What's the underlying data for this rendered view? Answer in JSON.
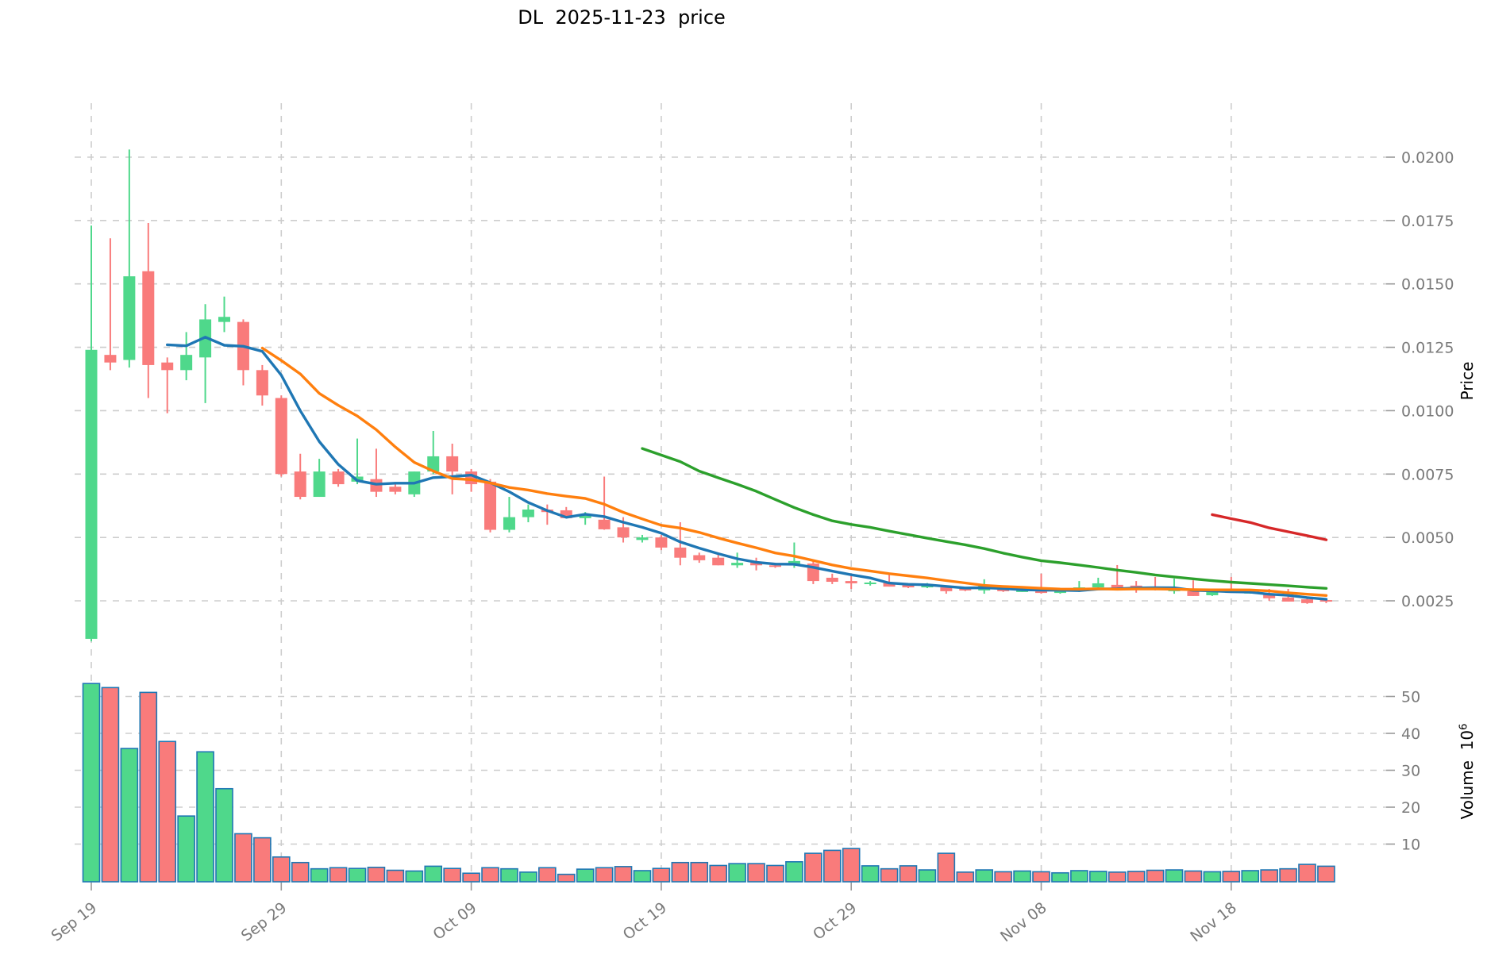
{
  "title": "DL  2025-11-23  price",
  "axes": {
    "price_axis_label": "Price",
    "volume_axis_label": "Volume",
    "volume_multiplier_base": "10",
    "volume_multiplier_exp": "6",
    "price_ticks": [
      {
        "label": "0.0025",
        "value": 0.0025
      },
      {
        "label": "0.0050",
        "value": 0.005
      },
      {
        "label": "0.0075",
        "value": 0.0075
      },
      {
        "label": "0.0100",
        "value": 0.01
      },
      {
        "label": "0.0125",
        "value": 0.0125
      },
      {
        "label": "0.0150",
        "value": 0.015
      },
      {
        "label": "0.0175",
        "value": 0.0175
      },
      {
        "label": "0.0200",
        "value": 0.02
      }
    ],
    "volume_ticks": [
      {
        "label": "10",
        "value": 10
      },
      {
        "label": "20",
        "value": 20
      },
      {
        "label": "30",
        "value": 30
      },
      {
        "label": "40",
        "value": 40
      },
      {
        "label": "50",
        "value": 50
      }
    ],
    "x_ticks": [
      {
        "label": "Sep 19",
        "day_index": 0
      },
      {
        "label": "Sep 29",
        "day_index": 10
      },
      {
        "label": "Oct 09",
        "day_index": 20
      },
      {
        "label": "Oct 19",
        "day_index": 30
      },
      {
        "label": "Oct 29",
        "day_index": 40
      },
      {
        "label": "Nov 08",
        "day_index": 50
      },
      {
        "label": "Nov 18",
        "day_index": 60
      }
    ]
  },
  "colors": {
    "up": "#4fd88b",
    "down": "#f97b7b",
    "volume_edge": "#1f77b4",
    "grid": "#cdcdcd",
    "tick_text": "#7a7a7a",
    "title_text": "#000000",
    "ma5": "#1f77b4",
    "ma10": "#ff7f0e",
    "ma30": "#2ca02c",
    "ma60": "#d62728"
  },
  "chart_data": {
    "type": "candlestick",
    "symbol": "DL",
    "title": "DL  2025-11-23  price",
    "ylabel": "Price",
    "ylabel_lower": "Volume 10^6",
    "grid": true,
    "price_ylim": [
      0.0002,
      0.0221
    ],
    "volume_ylim_millions": [
      0,
      58
    ],
    "x_tick_labels": [
      "Sep 19",
      "Sep 29",
      "Oct 09",
      "Oct 19",
      "Oct 29",
      "Nov 08",
      "Nov 18"
    ],
    "moving_averages": [
      {
        "window": 5,
        "color": "#1f77b4"
      },
      {
        "window": 10,
        "color": "#ff7f0e"
      },
      {
        "window": 30,
        "color": "#2ca02c"
      },
      {
        "window": 60,
        "color": "#d62728"
      }
    ],
    "dates": [
      "2025-09-19",
      "2025-09-20",
      "2025-09-21",
      "2025-09-22",
      "2025-09-23",
      "2025-09-24",
      "2025-09-25",
      "2025-09-26",
      "2025-09-27",
      "2025-09-28",
      "2025-09-29",
      "2025-09-30",
      "2025-10-01",
      "2025-10-02",
      "2025-10-03",
      "2025-10-04",
      "2025-10-05",
      "2025-10-06",
      "2025-10-07",
      "2025-10-08",
      "2025-10-09",
      "2025-10-10",
      "2025-10-11",
      "2025-10-12",
      "2025-10-13",
      "2025-10-14",
      "2025-10-15",
      "2025-10-16",
      "2025-10-17",
      "2025-10-18",
      "2025-10-19",
      "2025-10-20",
      "2025-10-21",
      "2025-10-22",
      "2025-10-23",
      "2025-10-24",
      "2025-10-25",
      "2025-10-26",
      "2025-10-27",
      "2025-10-28",
      "2025-10-29",
      "2025-10-30",
      "2025-10-31",
      "2025-11-01",
      "2025-11-02",
      "2025-11-03",
      "2025-11-04",
      "2025-11-05",
      "2025-11-06",
      "2025-11-07",
      "2025-11-08",
      "2025-11-09",
      "2025-11-10",
      "2025-11-11",
      "2025-11-12",
      "2025-11-13",
      "2025-11-14",
      "2025-11-15",
      "2025-11-16",
      "2025-11-17",
      "2025-11-18",
      "2025-11-19",
      "2025-11-20",
      "2025-11-21",
      "2025-11-22",
      "2025-11-23"
    ],
    "open": [
      0.001,
      0.0122,
      0.012,
      0.0155,
      0.0119,
      0.0116,
      0.0121,
      0.0135,
      0.0135,
      0.0116,
      0.0105,
      0.0076,
      0.0066,
      0.0076,
      0.0072,
      0.0073,
      0.007,
      0.0067,
      0.0076,
      0.0082,
      0.0076,
      0.0072,
      0.0053,
      0.0058,
      0.0061,
      0.00607,
      0.00576,
      0.0057,
      0.0054,
      0.0049,
      0.005,
      0.0046,
      0.0043,
      0.0042,
      0.0039,
      0.004,
      0.0039,
      0.0039,
      0.00397,
      0.00341,
      0.00328,
      0.00316,
      0.00322,
      0.00313,
      0.00303,
      0.00303,
      0.00297,
      0.00291,
      0.00297,
      0.00288,
      0.00297,
      0.00281,
      0.00288,
      0.00303,
      0.00313,
      0.0031,
      0.00303,
      0.00288,
      0.00288,
      0.00272,
      0.00291,
      0.0028,
      0.00275,
      0.00263,
      0.00256,
      0.00253
    ],
    "high": [
      0.0173,
      0.0168,
      0.0203,
      0.0174,
      0.0121,
      0.0131,
      0.0142,
      0.0145,
      0.0136,
      0.0118,
      0.0106,
      0.0083,
      0.0081,
      0.0077,
      0.0089,
      0.0085,
      0.0071,
      0.0076,
      0.0092,
      0.0087,
      0.0077,
      0.0073,
      0.0066,
      0.0063,
      0.0063,
      0.0062,
      0.006,
      0.0074,
      0.0058,
      0.0051,
      0.0051,
      0.0056,
      0.0044,
      0.0044,
      0.0044,
      0.0042,
      0.004,
      0.0048,
      0.00407,
      0.00357,
      0.0035,
      0.00328,
      0.0036,
      0.00318,
      0.0032,
      0.0031,
      0.003,
      0.00335,
      0.00303,
      0.00297,
      0.00357,
      0.00297,
      0.00328,
      0.00341,
      0.00391,
      0.00328,
      0.00344,
      0.00338,
      0.00331,
      0.00288,
      0.00344,
      0.00291,
      0.00297,
      0.00297,
      0.0026,
      0.0026
    ],
    "low": [
      0.0009,
      0.0116,
      0.0117,
      0.0105,
      0.0099,
      0.0112,
      0.0103,
      0.0131,
      0.011,
      0.0102,
      0.0074,
      0.0065,
      0.0066,
      0.007,
      0.0071,
      0.0066,
      0.0067,
      0.0066,
      0.0075,
      0.0067,
      0.0068,
      0.0052,
      0.0052,
      0.0056,
      0.0055,
      0.0058,
      0.0055,
      0.0053,
      0.0048,
      0.0048,
      0.0045,
      0.0039,
      0.004,
      0.0039,
      0.0038,
      0.0037,
      0.0038,
      0.0038,
      0.00316,
      0.00316,
      0.00297,
      0.0031,
      0.00306,
      0.003,
      0.003,
      0.00278,
      0.00288,
      0.00278,
      0.00285,
      0.00285,
      0.00278,
      0.00278,
      0.00285,
      0.003,
      0.00297,
      0.00282,
      0.00291,
      0.00278,
      0.00269,
      0.00269,
      0.00281,
      0.00278,
      0.0025,
      0.00247,
      0.00238,
      0.00241
    ],
    "close": [
      0.0124,
      0.0119,
      0.0153,
      0.0118,
      0.0116,
      0.0122,
      0.0136,
      0.0137,
      0.0116,
      0.0106,
      0.0075,
      0.0066,
      0.0076,
      0.0071,
      0.0074,
      0.0068,
      0.0068,
      0.0076,
      0.0082,
      0.0076,
      0.0071,
      0.0053,
      0.0058,
      0.0061,
      0.006,
      0.00576,
      0.00592,
      0.00532,
      0.005,
      0.005,
      0.0046,
      0.0042,
      0.0041,
      0.0039,
      0.004,
      0.0039,
      0.00385,
      0.00407,
      0.00328,
      0.00325,
      0.00319,
      0.00322,
      0.00306,
      0.00303,
      0.00316,
      0.00288,
      0.00291,
      0.0031,
      0.00288,
      0.00291,
      0.00281,
      0.00288,
      0.00303,
      0.00319,
      0.00297,
      0.00297,
      0.00294,
      0.003,
      0.00269,
      0.00285,
      0.00281,
      0.00285,
      0.0026,
      0.00247,
      0.00241,
      0.00247
    ],
    "volume_millions": [
      53.5,
      52.4,
      35.9,
      51.1,
      37.8,
      17.6,
      35.0,
      25.0,
      12.8,
      11.7,
      6.5,
      5.0,
      3.3,
      3.6,
      3.4,
      3.7,
      2.9,
      2.7,
      4.0,
      3.4,
      2.1,
      3.6,
      3.3,
      2.4,
      3.6,
      1.8,
      3.2,
      3.6,
      3.9,
      2.8,
      3.4,
      5.0,
      5.0,
      4.2,
      4.7,
      4.7,
      4.2,
      5.2,
      7.5,
      8.3,
      8.8,
      4.1,
      3.3,
      4.1,
      3.0,
      7.5,
      2.4,
      3.0,
      2.5,
      2.7,
      2.5,
      2.2,
      2.8,
      2.6,
      2.4,
      2.6,
      2.9,
      3.0,
      2.7,
      2.5,
      2.6,
      2.8,
      3.0,
      3.3,
      4.5,
      4.0
    ]
  }
}
